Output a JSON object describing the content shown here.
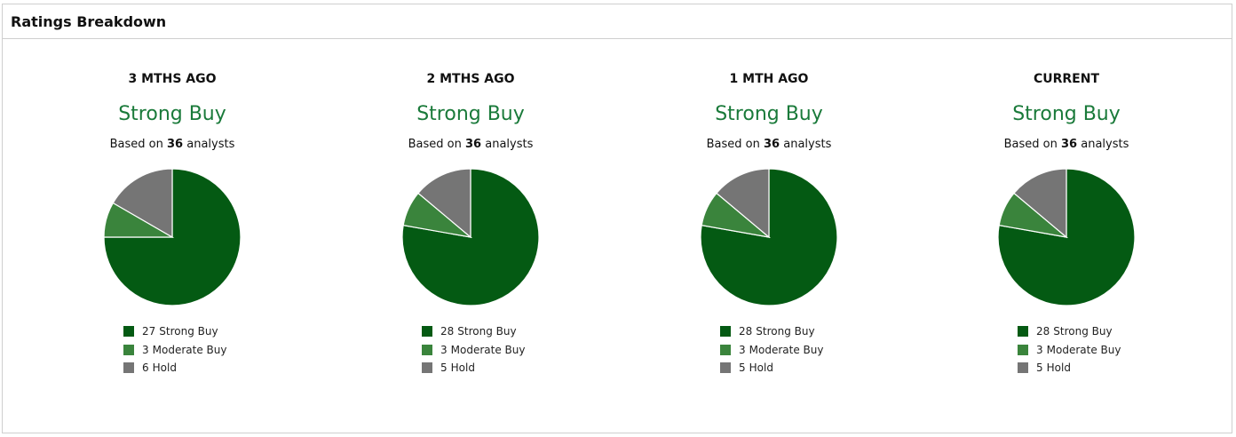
{
  "panel": {
    "title": "Ratings Breakdown"
  },
  "labels": {
    "based_prefix": "Based on",
    "based_suffix": "analysts"
  },
  "colors": {
    "strong_buy": "#045a13",
    "moderate_buy": "#3a843c",
    "hold": "#757575",
    "rating_text": "#1a7a3a"
  },
  "chart_data": [
    {
      "type": "pie",
      "title": "3 MTHS AGO",
      "consensus": "Strong Buy",
      "analysts": 36,
      "slices": [
        {
          "label": "Strong Buy",
          "value": 27
        },
        {
          "label": "Moderate Buy",
          "value": 3
        },
        {
          "label": "Hold",
          "value": 6
        }
      ]
    },
    {
      "type": "pie",
      "title": "2 MTHS AGO",
      "consensus": "Strong Buy",
      "analysts": 36,
      "slices": [
        {
          "label": "Strong Buy",
          "value": 28
        },
        {
          "label": "Moderate Buy",
          "value": 3
        },
        {
          "label": "Hold",
          "value": 5
        }
      ]
    },
    {
      "type": "pie",
      "title": "1 MTH AGO",
      "consensus": "Strong Buy",
      "analysts": 36,
      "slices": [
        {
          "label": "Strong Buy",
          "value": 28
        },
        {
          "label": "Moderate Buy",
          "value": 3
        },
        {
          "label": "Hold",
          "value": 5
        }
      ]
    },
    {
      "type": "pie",
      "title": "CURRENT",
      "consensus": "Strong Buy",
      "analysts": 36,
      "slices": [
        {
          "label": "Strong Buy",
          "value": 28
        },
        {
          "label": "Moderate Buy",
          "value": 3
        },
        {
          "label": "Hold",
          "value": 5
        }
      ]
    }
  ]
}
